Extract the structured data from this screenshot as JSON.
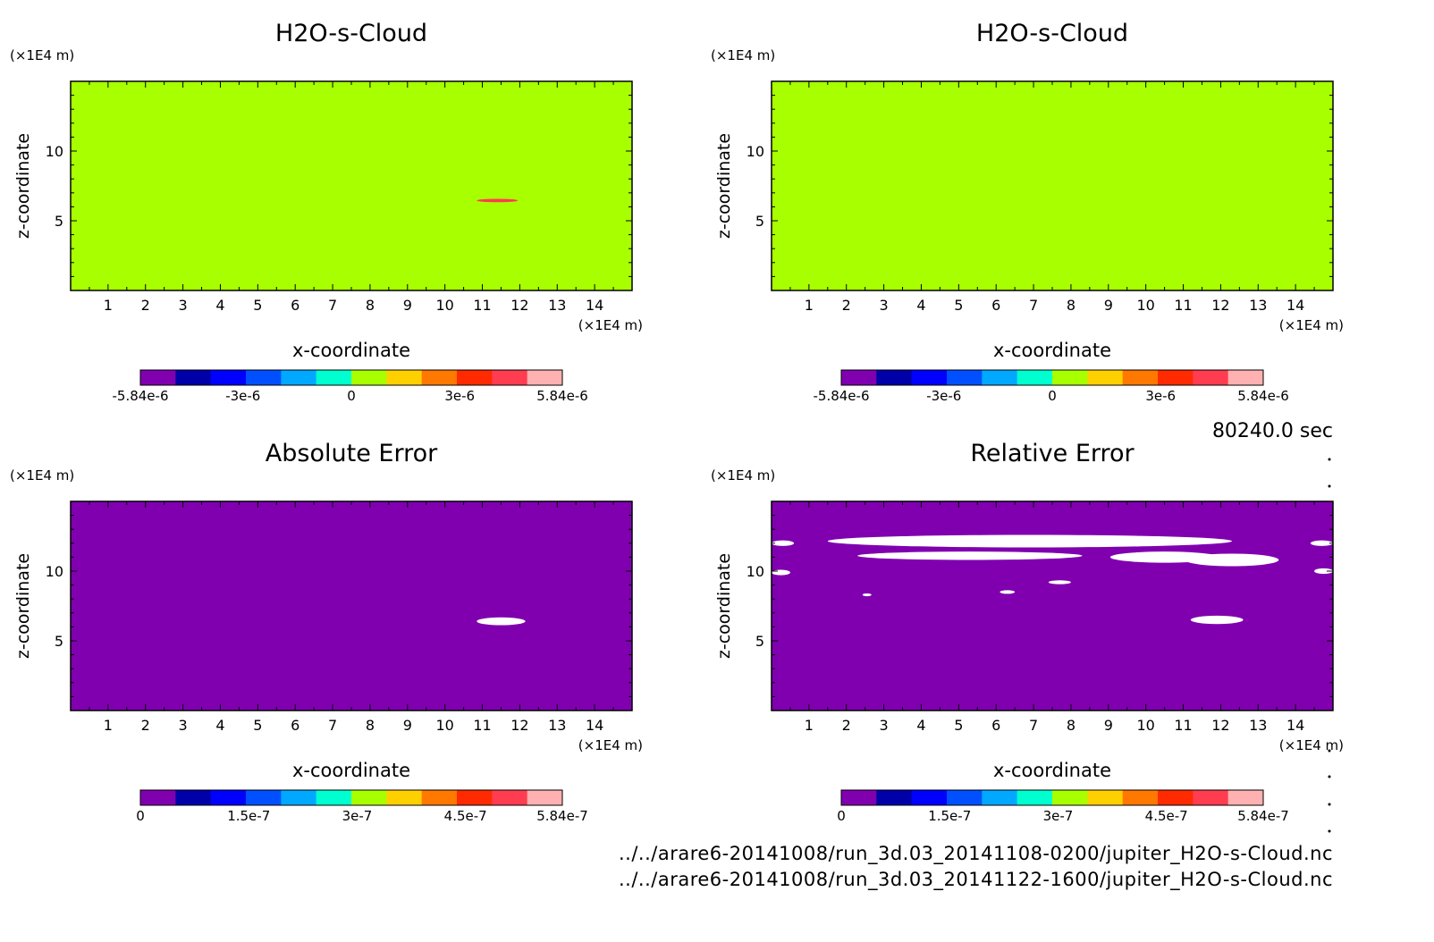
{
  "colors": {
    "background": "#ffffff",
    "axis": "#000000",
    "field_green": "#a8ff00",
    "field_purple": "#8000b0",
    "blob_red": "#ff2a00",
    "blob_white": "#ffffff",
    "colorbar_scale": [
      "#8000b0",
      "#0000a8",
      "#0000ff",
      "#0050ff",
      "#00a8ff",
      "#00ffd0",
      "#a8ff00",
      "#ffd000",
      "#ff7800",
      "#ff2a00",
      "#ff3c50",
      "#ffb0b0"
    ]
  },
  "time_label": "80240.0 sec",
  "file_paths": [
    "../../arare6-20141008/run_3d.03_20141108-0200/jupiter_H2O-s-Cloud.nc",
    "../../arare6-20141008/run_3d.03_20141122-1600/jupiter_H2O-s-Cloud.nc"
  ],
  "chart_data": [
    {
      "type": "heatmap",
      "title": "H2O-s-Cloud",
      "xlabel": "x-coordinate",
      "ylabel": "z-coordinate",
      "x_unit": "(×1E4 m)",
      "y_unit": "(×1E4 m)",
      "xlim": [
        0,
        15
      ],
      "ylim": [
        0,
        15
      ],
      "xticks": [
        1,
        2,
        3,
        4,
        5,
        6,
        7,
        8,
        9,
        10,
        11,
        12,
        13,
        14
      ],
      "yticks": [
        5,
        10
      ],
      "field_value": 0,
      "features": [
        {
          "value": 4.5e-06,
          "x": 11.4,
          "z": 6.45,
          "dx": 0.55,
          "dz": 0.12
        }
      ],
      "colorbar": {
        "min": -5.84e-06,
        "max": 5.84e-06,
        "tick_values": [
          -5.84e-06,
          -3e-06,
          0,
          3e-06,
          5.84e-06
        ],
        "tick_labels": [
          "-5.84e-6",
          "-3e-6",
          "0",
          "3e-6",
          "5.84e-6"
        ]
      }
    },
    {
      "type": "heatmap",
      "title": "H2O-s-Cloud",
      "xlabel": "x-coordinate",
      "ylabel": "z-coordinate",
      "x_unit": "(×1E4 m)",
      "y_unit": "(×1E4 m)",
      "xlim": [
        0,
        15
      ],
      "ylim": [
        0,
        15
      ],
      "xticks": [
        1,
        2,
        3,
        4,
        5,
        6,
        7,
        8,
        9,
        10,
        11,
        12,
        13,
        14
      ],
      "yticks": [
        5,
        10
      ],
      "field_value": 0,
      "features": [],
      "colorbar": {
        "min": -5.84e-06,
        "max": 5.84e-06,
        "tick_values": [
          -5.84e-06,
          -3e-06,
          0,
          3e-06,
          5.84e-06
        ],
        "tick_labels": [
          "-5.84e-6",
          "-3e-6",
          "0",
          "3e-6",
          "5.84e-6"
        ]
      }
    },
    {
      "type": "heatmap",
      "title": "Absolute Error",
      "xlabel": "x-coordinate",
      "ylabel": "z-coordinate",
      "x_unit": "(×1E4 m)",
      "y_unit": "(×1E4 m)",
      "xlim": [
        0,
        15
      ],
      "ylim": [
        0,
        15
      ],
      "xticks": [
        1,
        2,
        3,
        4,
        5,
        6,
        7,
        8,
        9,
        10,
        11,
        12,
        13,
        14
      ],
      "yticks": [
        5,
        10
      ],
      "field_value": 0,
      "features": [
        {
          "value": "above-range",
          "x": 11.5,
          "z": 6.4,
          "dx": 0.65,
          "dz": 0.28
        }
      ],
      "colorbar": {
        "min": 0,
        "max": 5.84e-07,
        "tick_values": [
          0,
          1.5e-07,
          3e-07,
          4.5e-07,
          5.84e-07
        ],
        "tick_labels": [
          "0",
          "1.5e-7",
          "3e-7",
          "4.5e-7",
          "5.84e-7"
        ]
      }
    },
    {
      "type": "heatmap",
      "title": "Relative Error",
      "xlabel": "x-coordinate",
      "ylabel": "z-coordinate",
      "x_unit": "(×1E4 m)",
      "y_unit": "(×1E4 m)",
      "xlim": [
        0,
        15
      ],
      "ylim": [
        0,
        15
      ],
      "xticks": [
        1,
        2,
        3,
        4,
        5,
        6,
        7,
        8,
        9,
        10,
        11,
        12,
        13,
        14
      ],
      "yticks": [
        5,
        10
      ],
      "field_value": 0,
      "features": [
        {
          "value": "above-range",
          "x": 0.3,
          "z": 12.0,
          "dx": 0.3,
          "dz": 0.2
        },
        {
          "value": "above-range",
          "x": 6.9,
          "z": 12.15,
          "dx": 5.4,
          "dz": 0.45
        },
        {
          "value": "above-range",
          "x": 5.3,
          "z": 11.1,
          "dx": 3.0,
          "dz": 0.3
        },
        {
          "value": "above-range",
          "x": 10.5,
          "z": 11.0,
          "dx": 1.45,
          "dz": 0.4
        },
        {
          "value": "above-range",
          "x": 12.3,
          "z": 10.8,
          "dx": 1.25,
          "dz": 0.45
        },
        {
          "value": "above-range",
          "x": 0.25,
          "z": 9.9,
          "dx": 0.25,
          "dz": 0.2
        },
        {
          "value": "above-range",
          "x": 14.7,
          "z": 12.0,
          "dx": 0.3,
          "dz": 0.2
        },
        {
          "value": "above-range",
          "x": 14.75,
          "z": 10.0,
          "dx": 0.25,
          "dz": 0.2
        },
        {
          "value": "above-range",
          "x": 7.7,
          "z": 9.2,
          "dx": 0.3,
          "dz": 0.14
        },
        {
          "value": "above-range",
          "x": 6.3,
          "z": 8.5,
          "dx": 0.2,
          "dz": 0.13
        },
        {
          "value": "above-range",
          "x": 2.55,
          "z": 8.3,
          "dx": 0.12,
          "dz": 0.1
        },
        {
          "value": "above-range",
          "x": 11.9,
          "z": 6.5,
          "dx": 0.7,
          "dz": 0.3
        }
      ],
      "colorbar": {
        "min": 0,
        "max": 5.84e-07,
        "tick_values": [
          0,
          1.5e-07,
          3e-07,
          4.5e-07,
          5.84e-07
        ],
        "tick_labels": [
          "0",
          "1.5e-7",
          "3e-7",
          "4.5e-7",
          "5.84e-7"
        ]
      }
    }
  ]
}
